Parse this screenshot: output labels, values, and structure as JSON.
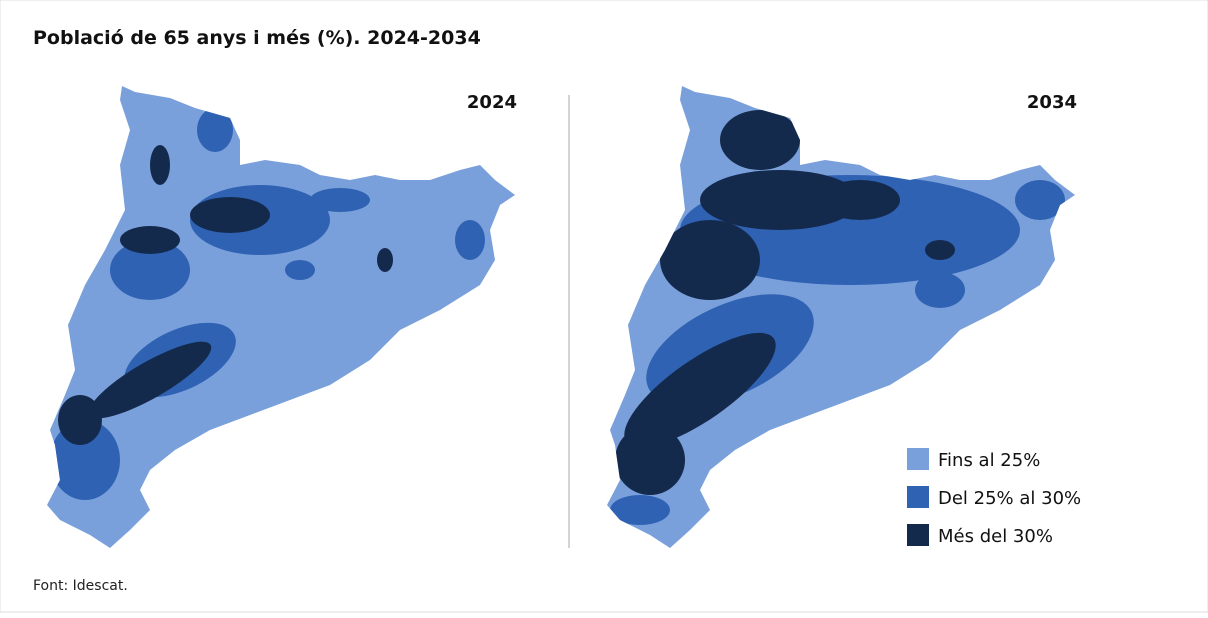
{
  "title": "Població de 65 anys i més (%). 2024-2034",
  "panels": [
    {
      "label": "2024"
    },
    {
      "label": "2034"
    }
  ],
  "legend": [
    {
      "label": "Fins al 25%",
      "color": "#7aa0db"
    },
    {
      "label": "Del 25% al 30%",
      "color": "#2f62b3"
    },
    {
      "label": "Més del 30%",
      "color": "#142a4c"
    }
  ],
  "source": "Font: Idescat."
}
